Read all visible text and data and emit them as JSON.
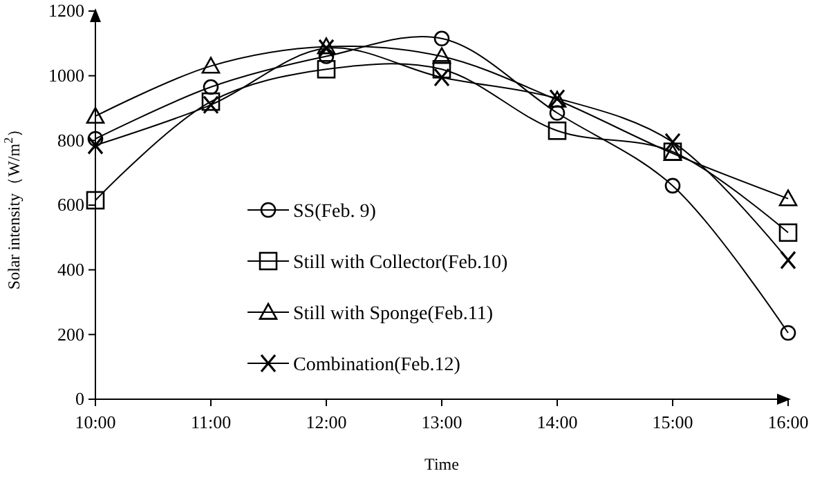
{
  "chart_data": {
    "type": "line",
    "xlabel": "Time",
    "ylabel": "Solar intensity（W/m$^{2}$）",
    "categories": [
      "10:00",
      "11:00",
      "12:00",
      "13:00",
      "14:00",
      "15:00",
      "16:00"
    ],
    "series": [
      {
        "name": "SS(Feb. 9)",
        "color": "#000000",
        "marker": "circle",
        "values": [
          805,
          965,
          1060,
          1115,
          885,
          660,
          205
        ]
      },
      {
        "name": "Still with Collector(Feb.10)",
        "color": "#000000",
        "marker": "square",
        "values": [
          615,
          920,
          1020,
          1020,
          830,
          765,
          515
        ]
      },
      {
        "name": "Still with Sponge(Feb.11)",
        "color": "#000000",
        "marker": "triangle",
        "values": [
          875,
          1030,
          1090,
          1060,
          925,
          760,
          620
        ]
      },
      {
        "name": "Combination(Feb.12)",
        "color": "#000000",
        "marker": "cross",
        "values": [
          785,
          910,
          1085,
          995,
          930,
          795,
          430
        ]
      }
    ],
    "ylim": [
      0,
      1200
    ],
    "yticks": [
      0,
      200,
      400,
      600,
      800,
      1000,
      1200
    ],
    "grid": false,
    "legend": "center",
    "line_style": "solid"
  }
}
